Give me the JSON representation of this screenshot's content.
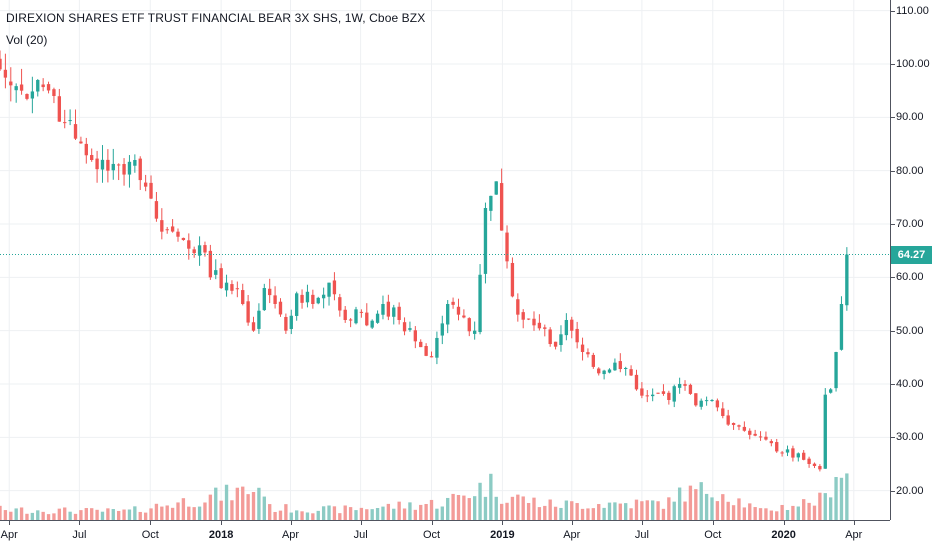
{
  "header": {
    "title": "DIREXION SHARES ETF TRUST FINANCIAL BEAR 3X SHS, 1W, Cboe BZX",
    "indicator_label": "Vol (20)"
  },
  "colors": {
    "up": "#26a69a",
    "down": "#ef5350",
    "volume_up": "#8ccbc4",
    "volume_down": "#f39b98",
    "grid": "#eef0f3",
    "last_price_line": "#26a69a"
  },
  "last_price": {
    "label": "64.27",
    "value": 64.27
  },
  "chart_data": {
    "type": "candlestick",
    "title": "DIREXION SHARES ETF TRUST FINANCIAL BEAR 3X SHS, 1W, Cboe BZX",
    "timeframe": "1W",
    "grid": true,
    "y_axis": {
      "position": "right",
      "ylim": [
        14.5,
        112
      ],
      "ticks": [
        20,
        30,
        40,
        50,
        60,
        70,
        80,
        90,
        100,
        110
      ],
      "tick_labels": [
        "20.00",
        "30.00",
        "40.00",
        "50.00",
        "60.00",
        "70.00",
        "80.00",
        "90.00",
        "100.00",
        "110.00"
      ]
    },
    "x_axis": {
      "start": "2017-03-20",
      "end": "2020-05-18",
      "ticks": [
        {
          "date": "2017-04-01",
          "label": "Apr",
          "strong": false
        },
        {
          "date": "2017-07-01",
          "label": "Jul",
          "strong": false
        },
        {
          "date": "2017-10-01",
          "label": "Oct",
          "strong": false
        },
        {
          "date": "2018-01-01",
          "label": "2018",
          "strong": true
        },
        {
          "date": "2018-04-01",
          "label": "Apr",
          "strong": false
        },
        {
          "date": "2018-07-01",
          "label": "Jul",
          "strong": false
        },
        {
          "date": "2018-10-01",
          "label": "Oct",
          "strong": false
        },
        {
          "date": "2019-01-01",
          "label": "2019",
          "strong": true
        },
        {
          "date": "2019-04-01",
          "label": "Apr",
          "strong": false
        },
        {
          "date": "2019-07-01",
          "label": "Jul",
          "strong": false
        },
        {
          "date": "2019-10-01",
          "label": "Oct",
          "strong": false
        },
        {
          "date": "2020-01-01",
          "label": "2020",
          "strong": true
        },
        {
          "date": "2020-04-01",
          "label": "Apr",
          "strong": false
        }
      ]
    },
    "close_anchors": [
      [
        "2017-03-20",
        99
      ],
      [
        "2017-04-03",
        96
      ],
      [
        "2017-04-17",
        95
      ],
      [
        "2017-05-08",
        97
      ],
      [
        "2017-05-29",
        94
      ],
      [
        "2017-06-12",
        89
      ],
      [
        "2017-06-26",
        86
      ],
      [
        "2017-07-17",
        82
      ],
      [
        "2017-08-07",
        80
      ],
      [
        "2017-08-21",
        81
      ],
      [
        "2017-09-11",
        82
      ],
      [
        "2017-09-25",
        77
      ],
      [
        "2017-10-09",
        71
      ],
      [
        "2017-10-23",
        69
      ],
      [
        "2017-11-13",
        67
      ],
      [
        "2017-12-04",
        66
      ],
      [
        "2017-12-18",
        60
      ],
      [
        "2018-01-08",
        59
      ],
      [
        "2018-01-29",
        55
      ],
      [
        "2018-02-12",
        50
      ],
      [
        "2018-02-26",
        58
      ],
      [
        "2018-03-12",
        55
      ],
      [
        "2018-03-26",
        50
      ],
      [
        "2018-04-09",
        57
      ],
      [
        "2018-04-30",
        55
      ],
      [
        "2018-05-21",
        59
      ],
      [
        "2018-06-11",
        52
      ],
      [
        "2018-06-25",
        54
      ],
      [
        "2018-07-09",
        51
      ],
      [
        "2018-07-30",
        55
      ],
      [
        "2018-08-20",
        52
      ],
      [
        "2018-09-10",
        48
      ],
      [
        "2018-10-01",
        45
      ],
      [
        "2018-10-22",
        55
      ],
      [
        "2018-11-05",
        53
      ],
      [
        "2018-11-26",
        50
      ],
      [
        "2018-12-10",
        73
      ],
      [
        "2018-12-24",
        78
      ],
      [
        "2019-01-07",
        63
      ],
      [
        "2019-01-21",
        53
      ],
      [
        "2019-02-11",
        51
      ],
      [
        "2019-03-11",
        47
      ],
      [
        "2019-03-25",
        52
      ],
      [
        "2019-04-15",
        46
      ],
      [
        "2019-05-06",
        42
      ],
      [
        "2019-05-27",
        44
      ],
      [
        "2019-06-10",
        43
      ],
      [
        "2019-06-24",
        39
      ],
      [
        "2019-07-15",
        38
      ],
      [
        "2019-08-05",
        37
      ],
      [
        "2019-08-19",
        40
      ],
      [
        "2019-09-09",
        36
      ],
      [
        "2019-09-30",
        37
      ],
      [
        "2019-10-14",
        34
      ],
      [
        "2019-11-04",
        32
      ],
      [
        "2019-12-02",
        30
      ],
      [
        "2019-12-30",
        27
      ],
      [
        "2020-01-20",
        27
      ],
      [
        "2020-02-03",
        25
      ],
      [
        "2020-02-17",
        24
      ],
      [
        "2020-02-24",
        38
      ],
      [
        "2020-03-02",
        39
      ],
      [
        "2020-03-09",
        46
      ],
      [
        "2020-03-16",
        55
      ],
      [
        "2020-03-23",
        64.27
      ]
    ],
    "volume": {
      "scale_max": 100,
      "relative_levels": [
        [
          "2017-03-20",
          12
        ],
        [
          "2017-09-01",
          10
        ],
        [
          "2018-02-26",
          38
        ],
        [
          "2018-03-05",
          14
        ],
        [
          "2018-06-01",
          12
        ],
        [
          "2018-10-15",
          20
        ],
        [
          "2018-12-17",
          42
        ],
        [
          "2018-12-31",
          30
        ],
        [
          "2019-03-01",
          18
        ],
        [
          "2019-08-05",
          20
        ],
        [
          "2019-08-12",
          30
        ],
        [
          "2019-10-07",
          36
        ],
        [
          "2019-12-01",
          10
        ],
        [
          "2020-02-24",
          25
        ],
        [
          "2020-03-09",
          60
        ],
        [
          "2020-03-23",
          55
        ]
      ]
    }
  }
}
